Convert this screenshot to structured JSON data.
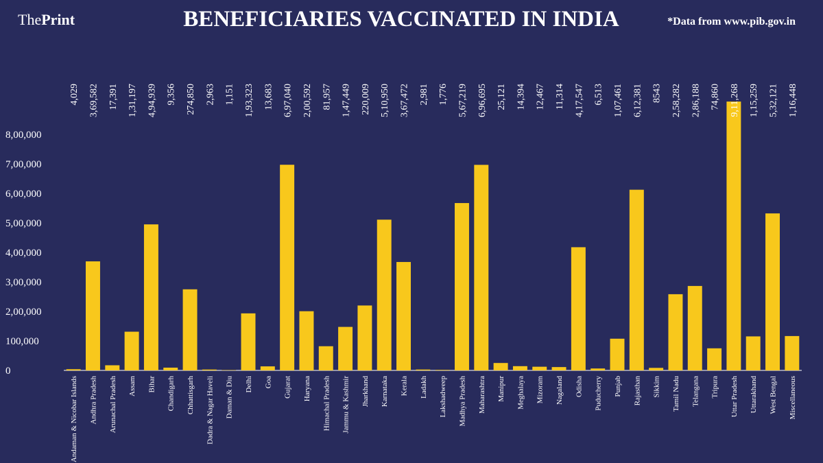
{
  "chart_data": {
    "type": "bar",
    "brand": {
      "prefix": "The",
      "name": "Print"
    },
    "title": "BENEFICIARIES VACCINATED IN INDIA",
    "source": "*Data from www.pib.gov.in",
    "color": "#f8c81c",
    "categories": [
      "Andaman & Nicobar Islands",
      "Andhra Pradesh",
      "Arunachal Pradesh",
      "Assam",
      "Bihar",
      "Chandigarh",
      "Chhattisgarh",
      "Dadra & Nagar Haveli",
      "Daman & Diu",
      "Delhi",
      "Goa",
      "Gujarat",
      "Haryana",
      "Himachal Pradesh",
      "Jammu & Kashmir",
      "Jharkhand",
      "Karnataka",
      "Kerala",
      "Ladakh",
      "Lakshadweep",
      "Madhya Pradesh",
      "Maharashtra",
      "Manipur",
      "Meghalaya",
      "Mizoram",
      "Nagaland",
      "Odisha",
      "Puducherry",
      "Punjab",
      "Rajasthan",
      "Sikkim",
      "Tamil Nadu",
      "Telangana",
      "Tripura",
      "Uttar Pradesh",
      "Uttarakhand",
      "West Bengal",
      "Miscellaneous"
    ],
    "values": [
      4029,
      369582,
      17391,
      131197,
      494939,
      9356,
      274850,
      2963,
      1151,
      193323,
      13683,
      697040,
      200592,
      81957,
      147449,
      220009,
      510950,
      367472,
      2981,
      1776,
      567219,
      696695,
      25121,
      14394,
      12467,
      11314,
      417547,
      6513,
      107461,
      612381,
      8543,
      258282,
      286188,
      74860,
      911268,
      115259,
      532121,
      116448
    ],
    "value_labels": [
      "4,029",
      "3,69,582",
      "17,391",
      "1,31,197",
      "4,94,939",
      "9,356",
      "274,850",
      "2,963",
      "1,151",
      "1,93,323",
      "13,683",
      "6,97,040",
      "2,00,592",
      "81,957",
      "1,47,449",
      "220,009",
      "5,10,950",
      "3,67,472",
      "2,981",
      "1,776",
      "5,67,219",
      "6,96,695",
      "25,121",
      "14,394",
      "12,467",
      "11,314",
      "4,17,547",
      "6,513",
      "1,07,461",
      "6,12,381",
      "8543",
      "2,58,282",
      "2,86,188",
      "74,860",
      "9,11,268",
      "1,15,259",
      "5,32,121",
      "1,16,448"
    ],
    "ylim": [
      0,
      930000
    ],
    "yticks": [
      0,
      {
        "value": 100000,
        "label": "100,000"
      },
      {
        "value": 200000,
        "label": "2,00,000"
      },
      {
        "value": 300000,
        "label": "3,00,000"
      },
      {
        "value": 400000,
        "label": "4,00,000"
      },
      {
        "value": 500000,
        "label": "5,00,000"
      },
      {
        "value": 600000,
        "label": "6,00,000"
      },
      {
        "value": 700000,
        "label": "7,00,000"
      },
      {
        "value": 800000,
        "label": "8,00,000"
      }
    ]
  }
}
